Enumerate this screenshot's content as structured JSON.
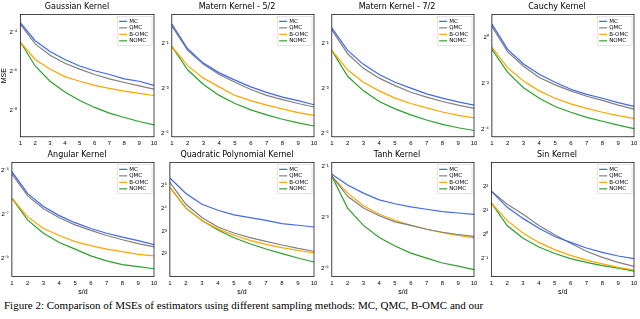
{
  "chart_data": [
    {
      "type": "line",
      "title": "Gaussian Kernel",
      "y_label": "MSE",
      "log": "y",
      "grid": false,
      "legend": "upper right",
      "x": [
        1,
        2,
        3,
        4,
        5,
        6,
        7,
        8,
        9,
        10
      ],
      "xlim": [
        1,
        10
      ],
      "xticks": [
        1,
        2,
        3,
        4,
        5,
        6,
        7,
        8,
        9,
        10
      ],
      "ylim": [
        0.0015,
        0.12
      ],
      "yticks": [
        {
          "value": 0.0625,
          "label": "2⁻⁴"
        },
        {
          "value": 0.015625,
          "label": "2⁻⁶"
        },
        {
          "value": 0.00390625,
          "label": "2⁻⁸"
        }
      ],
      "series": [
        {
          "name": "MC",
          "color": "#4169e1",
          "values": [
            0.09,
            0.047,
            0.032,
            0.024,
            0.019,
            0.016,
            0.014,
            0.012,
            0.011,
            0.0095
          ]
        },
        {
          "name": "QMC",
          "color": "#808080",
          "values": [
            0.085,
            0.042,
            0.028,
            0.021,
            0.017,
            0.014,
            0.012,
            0.0105,
            0.0093,
            0.0083
          ]
        },
        {
          "name": "B-OMC",
          "color": "#ffa500",
          "values": [
            0.045,
            0.024,
            0.017,
            0.013,
            0.011,
            0.0095,
            0.0085,
            0.0077,
            0.0071,
            0.0066
          ]
        },
        {
          "name": "NOMC",
          "color": "#2ca02c",
          "values": [
            0.045,
            0.019,
            0.011,
            0.0075,
            0.0055,
            0.0043,
            0.0035,
            0.003,
            0.0026,
            0.0023
          ]
        }
      ]
    },
    {
      "type": "line",
      "title": "Matern Kernel - 5/2",
      "log": "y",
      "grid": false,
      "legend": "upper right",
      "x": [
        1,
        2,
        3,
        4,
        5,
        6,
        7,
        8,
        9,
        10
      ],
      "xlim": [
        1,
        10
      ],
      "xticks": [
        1,
        2,
        3,
        4,
        5,
        6,
        7,
        8,
        9,
        10
      ],
      "ylim": [
        0.028,
        1.2
      ],
      "yticks": [
        {
          "value": 0.5,
          "label": "2⁻¹"
        },
        {
          "value": 0.125,
          "label": "2⁻³"
        },
        {
          "value": 0.03125,
          "label": "2⁻⁵"
        }
      ],
      "series": [
        {
          "name": "MC",
          "color": "#4169e1",
          "values": [
            0.9,
            0.42,
            0.27,
            0.2,
            0.16,
            0.13,
            0.11,
            0.095,
            0.085,
            0.075
          ]
        },
        {
          "name": "QMC",
          "color": "#808080",
          "values": [
            0.85,
            0.4,
            0.26,
            0.19,
            0.15,
            0.12,
            0.1,
            0.088,
            0.078,
            0.07
          ]
        },
        {
          "name": "B-OMC",
          "color": "#ffa500",
          "values": [
            0.45,
            0.25,
            0.17,
            0.13,
            0.1,
            0.085,
            0.074,
            0.066,
            0.059,
            0.054
          ]
        },
        {
          "name": "NOMC",
          "color": "#2ca02c",
          "values": [
            0.45,
            0.22,
            0.14,
            0.1,
            0.078,
            0.064,
            0.055,
            0.048,
            0.043,
            0.039
          ]
        }
      ]
    },
    {
      "type": "line",
      "title": "Matern Kernel - 7/2",
      "log": "y",
      "grid": false,
      "legend": "upper right",
      "x": [
        1,
        2,
        3,
        4,
        5,
        6,
        7,
        8,
        9,
        10
      ],
      "xlim": [
        1,
        10
      ],
      "xticks": [
        1,
        2,
        3,
        4,
        5,
        6,
        7,
        8,
        9,
        10
      ],
      "ylim": [
        0.028,
        1.2
      ],
      "yticks": [
        {
          "value": 0.5,
          "label": "2⁻¹"
        },
        {
          "value": 0.125,
          "label": "2⁻³"
        },
        {
          "value": 0.03125,
          "label": "2⁻⁵"
        }
      ],
      "series": [
        {
          "name": "MC",
          "color": "#4169e1",
          "values": [
            0.8,
            0.4,
            0.26,
            0.19,
            0.15,
            0.125,
            0.105,
            0.092,
            0.082,
            0.074
          ]
        },
        {
          "name": "QMC",
          "color": "#808080",
          "values": [
            0.75,
            0.36,
            0.23,
            0.17,
            0.135,
            0.11,
            0.095,
            0.083,
            0.074,
            0.067
          ]
        },
        {
          "name": "B-OMC",
          "color": "#ffa500",
          "values": [
            0.4,
            0.22,
            0.15,
            0.115,
            0.092,
            0.078,
            0.068,
            0.06,
            0.054,
            0.05
          ]
        },
        {
          "name": "NOMC",
          "color": "#2ca02c",
          "values": [
            0.4,
            0.18,
            0.115,
            0.083,
            0.066,
            0.055,
            0.047,
            0.041,
            0.037,
            0.034
          ]
        }
      ]
    },
    {
      "type": "line",
      "title": "Cauchy Kernel",
      "log": "y",
      "grid": false,
      "legend": "upper right",
      "x": [
        1,
        2,
        3,
        4,
        5,
        6,
        7,
        8,
        9,
        10
      ],
      "xlim": [
        1,
        10
      ],
      "xticks": [
        1,
        2,
        3,
        4,
        5,
        6,
        7,
        8,
        9,
        10
      ],
      "ylim": [
        0.05,
        2
      ],
      "yticks": [
        {
          "value": 1,
          "label": "2⁰"
        },
        {
          "value": 0.25,
          "label": "2⁻²"
        },
        {
          "value": 0.0625,
          "label": "2⁻⁴"
        }
      ],
      "series": [
        {
          "name": "MC",
          "color": "#4169e1",
          "values": [
            1.5,
            0.7,
            0.45,
            0.33,
            0.26,
            0.21,
            0.18,
            0.16,
            0.14,
            0.125
          ]
        },
        {
          "name": "QMC",
          "color": "#808080",
          "values": [
            1.4,
            0.65,
            0.42,
            0.3,
            0.24,
            0.2,
            0.17,
            0.15,
            0.13,
            0.115
          ]
        },
        {
          "name": "B-OMC",
          "color": "#ffa500",
          "values": [
            0.75,
            0.4,
            0.27,
            0.2,
            0.16,
            0.135,
            0.118,
            0.105,
            0.095,
            0.087
          ]
        },
        {
          "name": "NOMC",
          "color": "#2ca02c",
          "values": [
            0.7,
            0.35,
            0.22,
            0.16,
            0.125,
            0.105,
            0.09,
            0.08,
            0.071,
            0.064
          ]
        }
      ]
    },
    {
      "type": "line",
      "title": "Angular Kernel",
      "x_label": "s/d",
      "log": "y",
      "grid": false,
      "legend": "upper right",
      "x": [
        1,
        2,
        3,
        4,
        5,
        6,
        7,
        8,
        9,
        10
      ],
      "xlim": [
        1,
        10
      ],
      "xticks": [
        1,
        2,
        3,
        4,
        5,
        6,
        7,
        8,
        9,
        10
      ],
      "ylim": [
        0.0011,
        0.04
      ],
      "yticks": [
        {
          "value": 0.03125,
          "label": "2⁻⁵"
        },
        {
          "value": 0.0078125,
          "label": "2⁻⁷"
        },
        {
          "value": 0.001953125,
          "label": "2⁻⁹"
        }
      ],
      "series": [
        {
          "name": "MC",
          "color": "#4169e1",
          "values": [
            0.03,
            0.015,
            0.01,
            0.0075,
            0.006,
            0.005,
            0.0043,
            0.0038,
            0.0034,
            0.003
          ]
        },
        {
          "name": "QMC",
          "color": "#808080",
          "values": [
            0.028,
            0.014,
            0.0093,
            0.007,
            0.0056,
            0.0047,
            0.004,
            0.0035,
            0.0031,
            0.0028
          ]
        },
        {
          "name": "B-OMC",
          "color": "#ffa500",
          "values": [
            0.013,
            0.0072,
            0.005,
            0.004,
            0.0033,
            0.0029,
            0.0026,
            0.0024,
            0.0022,
            0.0021
          ]
        },
        {
          "name": "NOMC",
          "color": "#2ca02c",
          "values": [
            0.013,
            0.0065,
            0.0043,
            0.0032,
            0.0026,
            0.0021,
            0.0018,
            0.0016,
            0.0015,
            0.0014
          ]
        }
      ]
    },
    {
      "type": "line",
      "title": "Quadratic Polynomial Kernel",
      "x_label": "s/d",
      "log": "y",
      "grid": false,
      "legend": "upper right",
      "x": [
        1,
        2,
        3,
        4,
        5,
        6,
        7,
        8,
        9,
        10
      ],
      "xlim": [
        1,
        10
      ],
      "xticks": [
        1,
        2,
        3,
        4,
        5,
        6,
        7,
        8,
        9,
        10
      ],
      "ylim": [
        2,
        64
      ],
      "yticks": [
        {
          "value": 32,
          "label": "2⁵"
        },
        {
          "value": 16,
          "label": "2⁴"
        },
        {
          "value": 8,
          "label": "2³"
        },
        {
          "value": 4,
          "label": "2²"
        }
      ],
      "series": [
        {
          "name": "MC",
          "color": "#4169e1",
          "values": [
            40,
            25,
            18,
            15,
            13,
            12,
            11,
            10,
            9.5,
            9
          ]
        },
        {
          "name": "QMC",
          "color": "#808080",
          "values": [
            35,
            18,
            12,
            9,
            7.5,
            6.5,
            5.8,
            5.2,
            4.7,
            4.3
          ]
        },
        {
          "name": "B-OMC",
          "color": "#ffa500",
          "values": [
            30,
            16,
            11,
            8.5,
            7,
            6,
            5.3,
            4.8,
            4.4,
            4.1
          ]
        },
        {
          "name": "NOMC",
          "color": "#2ca02c",
          "values": [
            30,
            16,
            11,
            8.2,
            6.5,
            5.4,
            4.6,
            4,
            3.5,
            3.1
          ]
        }
      ]
    },
    {
      "type": "line",
      "title": "Tanh Kernel",
      "x_label": "s/d",
      "log": "y",
      "grid": false,
      "legend": "upper right",
      "x": [
        1,
        2,
        3,
        4,
        5,
        6,
        7,
        8,
        9,
        10
      ],
      "xlim": [
        1,
        10
      ],
      "xticks": [
        1,
        2,
        3,
        4,
        5,
        6,
        7,
        8,
        9,
        10
      ],
      "ylim": [
        0.025,
        0.55
      ],
      "yticks": [
        {
          "value": 0.5,
          "label": "2⁻¹"
        },
        {
          "value": 0.125,
          "label": "2⁻³"
        },
        {
          "value": 0.03125,
          "label": "2⁻⁵"
        }
      ],
      "series": [
        {
          "name": "MC",
          "color": "#4169e1",
          "values": [
            0.4,
            0.3,
            0.24,
            0.2,
            0.18,
            0.165,
            0.155,
            0.145,
            0.14,
            0.135
          ]
        },
        {
          "name": "QMC",
          "color": "#808080",
          "values": [
            0.38,
            0.22,
            0.16,
            0.13,
            0.11,
            0.1,
            0.09,
            0.083,
            0.078,
            0.074
          ]
        },
        {
          "name": "B-OMC",
          "color": "#ffa500",
          "values": [
            0.38,
            0.24,
            0.17,
            0.135,
            0.115,
            0.1,
            0.09,
            0.082,
            0.076,
            0.071
          ]
        },
        {
          "name": "NOMC",
          "color": "#2ca02c",
          "values": [
            0.38,
            0.16,
            0.1,
            0.072,
            0.057,
            0.047,
            0.041,
            0.036,
            0.033,
            0.03
          ]
        }
      ]
    },
    {
      "type": "line",
      "title": "Sin Kernel",
      "x_label": "s/d",
      "log": "y",
      "grid": false,
      "legend": "upper right",
      "x": [
        1,
        2,
        3,
        4,
        5,
        6,
        7,
        8,
        9,
        10
      ],
      "xlim": [
        1,
        10
      ],
      "xticks": [
        1,
        2,
        3,
        4,
        5,
        6,
        7,
        8,
        9,
        10
      ],
      "ylim": [
        0.3,
        8
      ],
      "yticks": [
        {
          "value": 4,
          "label": "2²"
        },
        {
          "value": 2,
          "label": "2¹"
        },
        {
          "value": 1,
          "label": "2⁰"
        },
        {
          "value": 0.5,
          "label": "2⁻¹"
        }
      ],
      "series": [
        {
          "name": "MC",
          "color": "#4169e1",
          "values": [
            3.5,
            2.2,
            1.6,
            1.2,
            0.95,
            0.8,
            0.68,
            0.6,
            0.54,
            0.5
          ]
        },
        {
          "name": "QMC",
          "color": "#808080",
          "values": [
            3.5,
            2.4,
            1.8,
            1.3,
            1.0,
            0.78,
            0.62,
            0.52,
            0.45,
            0.4
          ]
        },
        {
          "name": "B-OMC",
          "color": "#ffa500",
          "values": [
            2.5,
            1.5,
            1.05,
            0.8,
            0.65,
            0.55,
            0.48,
            0.43,
            0.39,
            0.36
          ]
        },
        {
          "name": "NOMC",
          "color": "#2ca02c",
          "values": [
            2.5,
            1.3,
            0.9,
            0.7,
            0.58,
            0.5,
            0.45,
            0.41,
            0.38,
            0.35
          ]
        }
      ]
    }
  ],
  "caption": "Figure 2: Comparison of MSEs of estimators using different sampling methods: MC, QMC, B-OMC and our"
}
